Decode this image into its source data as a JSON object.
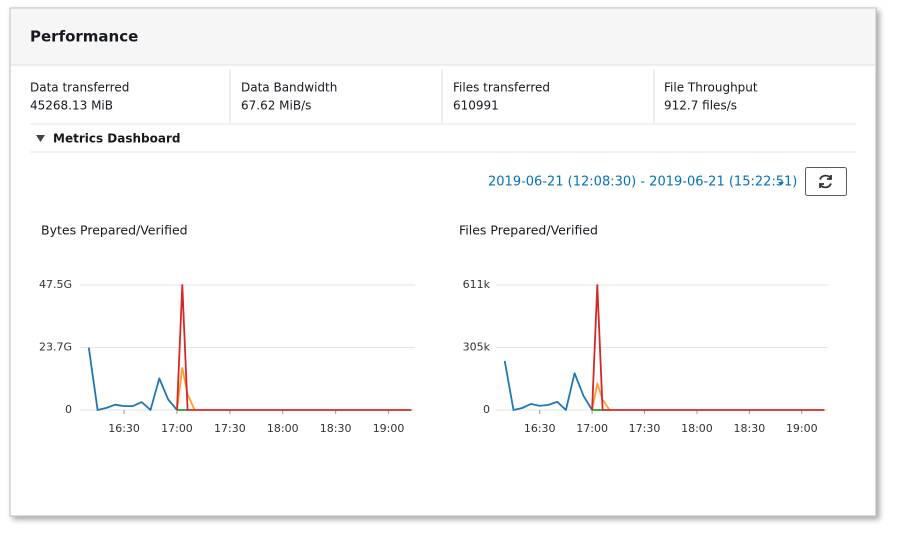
{
  "header": {
    "title": "Performance"
  },
  "metrics": [
    {
      "label": "Data transferred",
      "value": "45268.13 MiB"
    },
    {
      "label": "Data Bandwidth",
      "value": "67.62 MiB/s"
    },
    {
      "label": "Files transferred",
      "value": "610991"
    },
    {
      "label": "File Throughput",
      "value": "912.7 files/s"
    }
  ],
  "dashboard": {
    "title": "Metrics Dashboard",
    "time_range": "2019-06-21 (12:08:30) - 2019-06-21 (15:22:51)"
  },
  "chart_data": [
    {
      "type": "line",
      "title": "Bytes Prepared/Verified",
      "x": [
        "16:10",
        "16:15",
        "16:20",
        "16:25",
        "16:30",
        "16:35",
        "16:40",
        "16:45",
        "16:50",
        "16:55",
        "17:00",
        "17:03",
        "17:06",
        "17:10",
        "19:13"
      ],
      "xlim": [
        "16:05",
        "19:15"
      ],
      "xticks": [
        "16:30",
        "17:00",
        "17:30",
        "18:00",
        "18:30",
        "19:00"
      ],
      "ylim": [
        0,
        47500000000
      ],
      "yticks": [
        0,
        {
          "value": 23700000000,
          "label": "23.7G"
        },
        {
          "value": 47500000000,
          "label": "47.5G"
        }
      ],
      "grid": true,
      "series": [
        {
          "color": "#1f78b4",
          "values": [
            23700000000,
            0,
            800000000,
            2000000000,
            1500000000,
            1500000000,
            3000000000,
            0,
            12000000000,
            4000000000,
            0,
            null,
            null,
            null,
            null
          ]
        },
        {
          "color": "#2ca02c",
          "values": [
            null,
            null,
            null,
            null,
            null,
            null,
            null,
            null,
            null,
            null,
            0,
            0,
            0,
            null,
            null
          ]
        },
        {
          "color": "#ff9f2f",
          "values": [
            null,
            null,
            null,
            null,
            null,
            null,
            null,
            null,
            null,
            null,
            0,
            16000000000,
            6000000000,
            0,
            null
          ]
        },
        {
          "color": "#d62728",
          "values": [
            null,
            null,
            null,
            null,
            null,
            null,
            null,
            null,
            null,
            null,
            0,
            47500000000,
            0,
            0,
            0
          ]
        }
      ]
    },
    {
      "type": "line",
      "title": "Files Prepared/Verified",
      "x": [
        "16:10",
        "16:15",
        "16:20",
        "16:25",
        "16:30",
        "16:35",
        "16:40",
        "16:45",
        "16:50",
        "16:55",
        "17:00",
        "17:03",
        "17:06",
        "17:10",
        "19:13"
      ],
      "xlim": [
        "16:05",
        "19:15"
      ],
      "xticks": [
        "16:30",
        "17:00",
        "17:30",
        "18:00",
        "18:30",
        "19:00"
      ],
      "ylim": [
        0,
        611000
      ],
      "yticks": [
        0,
        {
          "value": 305000,
          "label": "305k"
        },
        {
          "value": 611000,
          "label": "611k"
        }
      ],
      "grid": true,
      "series": [
        {
          "color": "#1f78b4",
          "values": [
            240000,
            0,
            10000,
            30000,
            20000,
            25000,
            40000,
            0,
            180000,
            70000,
            0,
            null,
            null,
            null,
            null
          ]
        },
        {
          "color": "#2ca02c",
          "values": [
            null,
            null,
            null,
            null,
            null,
            null,
            null,
            null,
            null,
            null,
            0,
            0,
            0,
            null,
            null
          ]
        },
        {
          "color": "#ff9f2f",
          "values": [
            null,
            null,
            null,
            null,
            null,
            null,
            null,
            null,
            null,
            null,
            0,
            130000,
            50000,
            0,
            null
          ]
        },
        {
          "color": "#d62728",
          "values": [
            null,
            null,
            null,
            null,
            null,
            null,
            null,
            null,
            null,
            null,
            0,
            610991,
            0,
            0,
            0
          ]
        }
      ]
    }
  ]
}
